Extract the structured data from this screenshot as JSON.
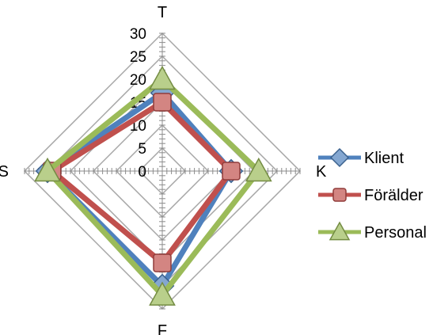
{
  "chart_data": {
    "type": "radar",
    "categories": [
      "T",
      "K",
      "F",
      "S"
    ],
    "radial_ticks": [
      "0",
      "5",
      "10",
      "15",
      "20",
      "25",
      "30"
    ],
    "rlim": [
      0,
      30
    ],
    "legend_position": "right",
    "series": [
      {
        "name": "Klient",
        "values": [
          17,
          15,
          25,
          25
        ],
        "color": "#4f81bd",
        "marker": "diamond"
      },
      {
        "name": "Förälder",
        "values": [
          15,
          15,
          20,
          24
        ],
        "color": "#c0504d",
        "marker": "square"
      },
      {
        "name": "Personal",
        "values": [
          20,
          21,
          27,
          25
        ],
        "color": "#9bbb59",
        "marker": "triangle"
      }
    ]
  }
}
